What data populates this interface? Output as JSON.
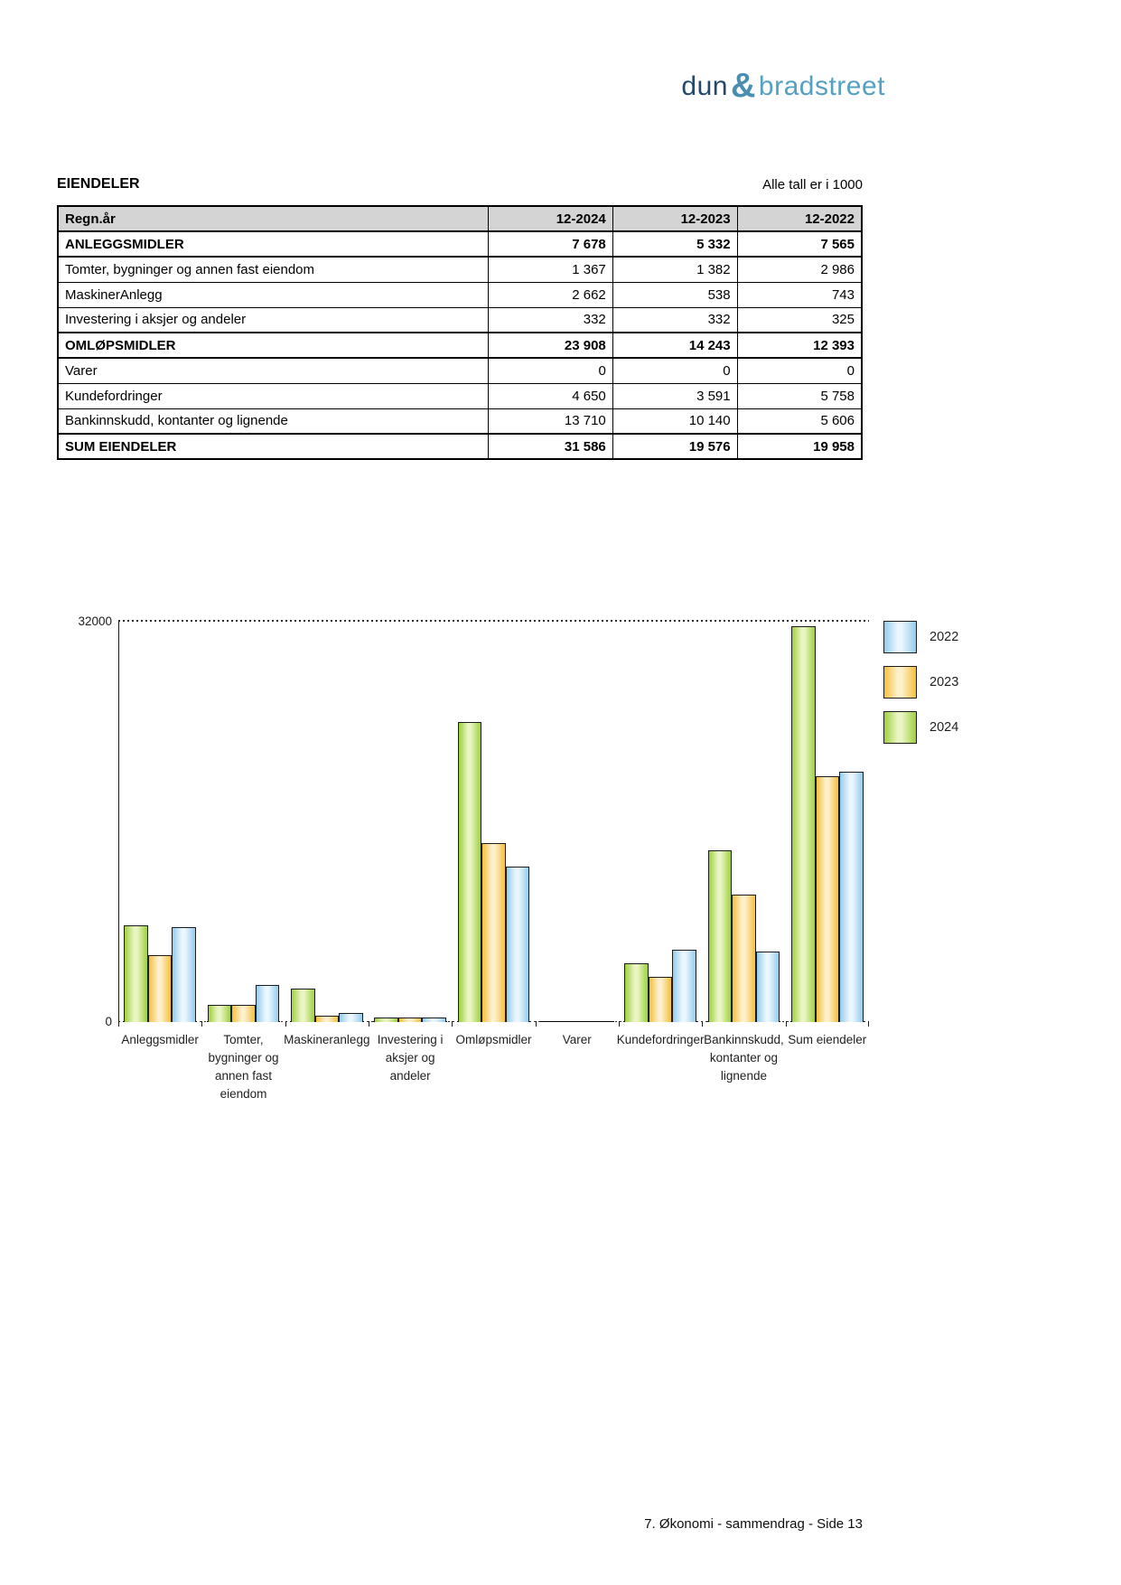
{
  "logo": {
    "dun": "dun",
    "amp": "&",
    "brad": "bradstreet",
    "dun_color": "#24476b",
    "amp_color": "#4a8fb2",
    "brad_color": "#55a0c3"
  },
  "header": {
    "title": "EIENDELER",
    "note": "Alle tall er i 1000"
  },
  "table": {
    "columns": [
      "Regn.år",
      "12-2024",
      "12-2023",
      "12-2022"
    ],
    "rows": [
      {
        "label": "ANLEGGSMIDLER",
        "values": [
          "7 678",
          "5 332",
          "7 565"
        ],
        "bold": true
      },
      {
        "label": "Tomter, bygninger og annen fast eiendom",
        "values": [
          "1 367",
          "1 382",
          "2 986"
        ],
        "bold": false
      },
      {
        "label": "MaskinerAnlegg",
        "values": [
          "2 662",
          "538",
          "743"
        ],
        "bold": false
      },
      {
        "label": "Investering i aksjer og andeler",
        "values": [
          "332",
          "332",
          "325"
        ],
        "bold": false
      },
      {
        "label": "OMLØPSMIDLER",
        "values": [
          "23 908",
          "14 243",
          "12 393"
        ],
        "bold": true
      },
      {
        "label": "Varer",
        "values": [
          "0",
          "0",
          "0"
        ],
        "bold": false
      },
      {
        "label": "Kundefordringer",
        "values": [
          "4 650",
          "3 591",
          "5 758"
        ],
        "bold": false
      },
      {
        "label": "Bankinnskudd, kontanter og lignende",
        "values": [
          "13 710",
          "10 140",
          "5 606"
        ],
        "bold": false
      },
      {
        "label": "SUM EIENDELER",
        "values": [
          "31 586",
          "19 576",
          "19 958"
        ],
        "bold": true
      }
    ]
  },
  "chart_data": {
    "type": "bar",
    "title": "",
    "xlabel": "",
    "ylabel": "",
    "ylim": [
      0,
      32000
    ],
    "ytick_labels": {
      "top": "32000",
      "bottom": "0"
    },
    "grid": "dotted line at y=32000 and dotted baseline at y=0",
    "legend_position": "right",
    "categories": [
      [
        "Anleggsmidler"
      ],
      [
        "Tomter,",
        "bygninger og",
        "annen fast",
        "eiendom"
      ],
      [
        "Maskineranlegg"
      ],
      [
        "Investering i",
        "aksjer og",
        "andeler"
      ],
      [
        "Omløpsmidler"
      ],
      [
        "Varer"
      ],
      [
        "Kundefordringer"
      ],
      [
        "Bankinnskudd,",
        "kontanter og",
        "lignende"
      ],
      [
        "Sum eiendeler"
      ]
    ],
    "series": [
      {
        "name": "2024",
        "color_key": "green",
        "values": [
          7678,
          1367,
          2662,
          332,
          23908,
          0,
          4650,
          13710,
          31586
        ]
      },
      {
        "name": "2023",
        "color_key": "orange",
        "values": [
          5332,
          1382,
          538,
          332,
          14243,
          0,
          3591,
          10140,
          19576
        ]
      },
      {
        "name": "2022",
        "color_key": "blue",
        "values": [
          7565,
          2986,
          743,
          325,
          12393,
          0,
          5758,
          5606,
          19958
        ]
      }
    ],
    "legend": [
      {
        "label": "2022",
        "color_key": "blue"
      },
      {
        "label": "2023",
        "color_key": "orange"
      },
      {
        "label": "2024",
        "color_key": "green"
      }
    ],
    "colors": {
      "green": {
        "edge": "#9fd03e",
        "center": "#e9f5c4"
      },
      "orange": {
        "edge": "#f5bf3c",
        "center": "#fdf0cc"
      },
      "blue": {
        "edge": "#94cbee",
        "center": "#ebf7fe"
      },
      "outline": "#1c1c1c"
    }
  },
  "footer": {
    "text": "7. Økonomi - sammendrag - Side 13"
  }
}
